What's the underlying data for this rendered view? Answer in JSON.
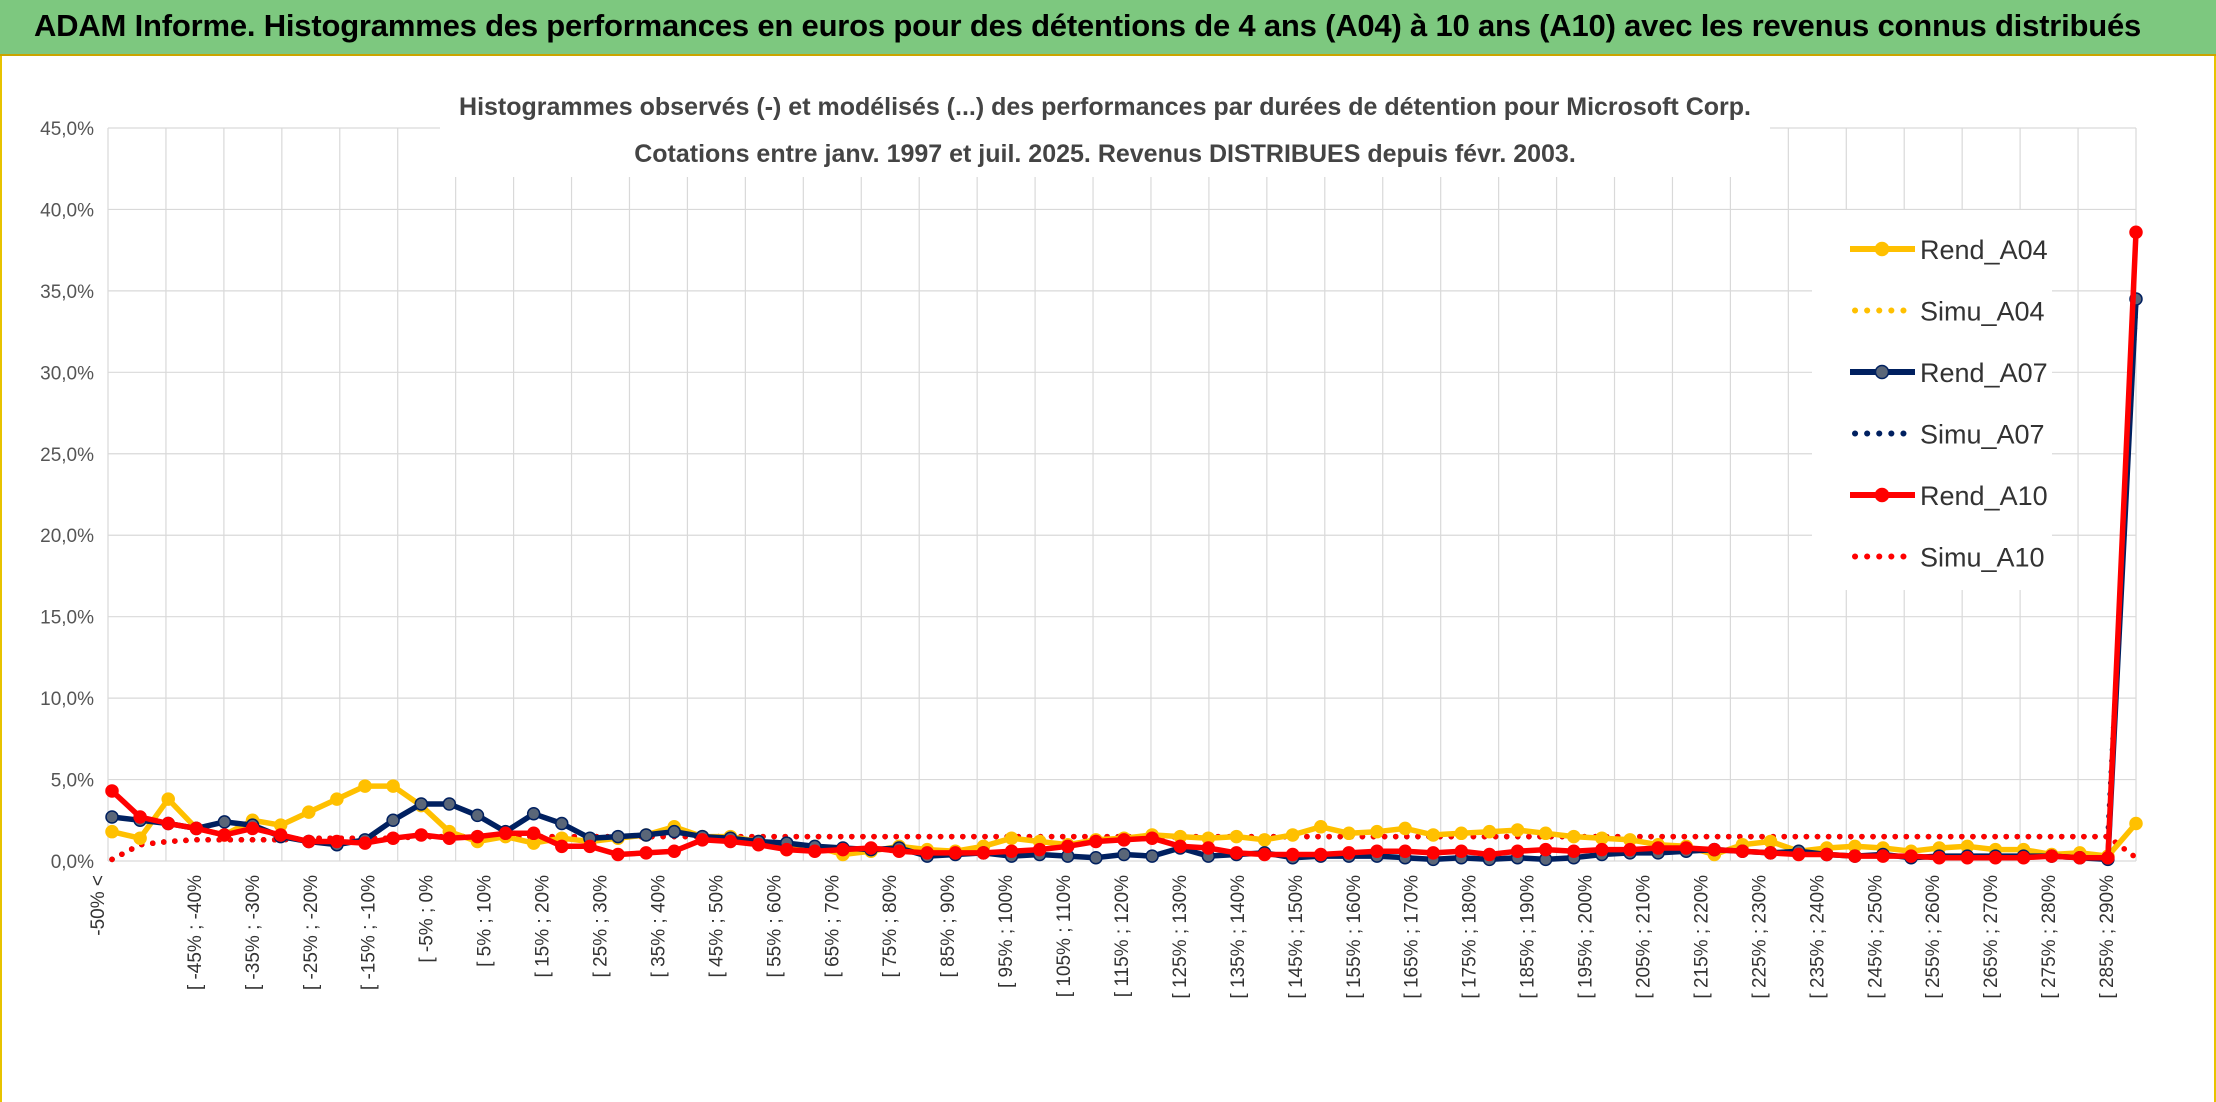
{
  "banner": {
    "title": "ADAM Informe. Histogrammes des performances en euros pour des détentions de 4 ans (A04) à 10 ans (A10) avec les revenus connus distribués"
  },
  "chart_data": {
    "type": "line",
    "title": "Histogrammes observés (-) et modélisés (...) des performances par durées de détention pour Microsoft Corp.",
    "subtitle": "Cotations entre janv. 1997 et juil. 2025. Revenus DISTRIBUES depuis févr. 2003.",
    "ylim": [
      0,
      45
    ],
    "yticks": [
      "0,0%",
      "5,0%",
      "10,0%",
      "15,0%",
      "20,0%",
      "25,0%",
      "30,0%",
      "35,0%",
      "40,0%",
      "45,0%"
    ],
    "grid": true,
    "legend_position": "right",
    "colors": {
      "A04": "#ffc000",
      "A07": "#002060",
      "A10": "#ff0000",
      "marker_A07": "#5a6678"
    },
    "category_labels": [
      "-50% <",
      "[ -45% ; -40%",
      "[ -35% ; -30%",
      "[ -25% ; -20%",
      "[ -15% ; -10%",
      "[ -5% ; 0%",
      "[ 5% ; 10%",
      "[ 15% ; 20%",
      "[ 25% ; 30%",
      "[ 35% ; 40%",
      "[ 45% ; 50%",
      "[ 55% ; 60%",
      "[ 65% ; 70%",
      "[ 75% ; 80%",
      "[ 85% ; 90%",
      "[ 95% ; 100%",
      "[ 105% ; 110%",
      "[ 115% ; 120%",
      "[ 125% ; 130%",
      "[ 135% ; 140%",
      "[ 145% ; 150%",
      "[ 155% ; 160%",
      "[ 165% ; 170%",
      "[ 175% ; 180%",
      "[ 185% ; 190%",
      "[ 195% ; 200%",
      "[ 205% ; 210%",
      "[ 215% ; 220%",
      "[ 225% ; 230%",
      "[ 235% ; 240%",
      "[ 245% ; 250%",
      "[ 255% ; 260%",
      "[ 265% ; 270%",
      "[ 275% ; 280%",
      "[ 285% ; 290%"
    ],
    "series": [
      {
        "name": "Rend_A04",
        "style": "solid",
        "color": "#ffc000",
        "marker_color": "#ffc000",
        "values": [
          1.8,
          1.4,
          3.8,
          2.0,
          1.6,
          2.5,
          2.2,
          3.0,
          3.8,
          4.6,
          4.6,
          3.4,
          1.8,
          1.2,
          1.5,
          1.1,
          1.4,
          1.2,
          1.4,
          1.6,
          2.1,
          1.5,
          1.5,
          1.2,
          0.7,
          0.9,
          0.4,
          0.6,
          0.9,
          0.7,
          0.6,
          0.9,
          1.4,
          1.2,
          1.0,
          1.3,
          1.4,
          1.6,
          1.5,
          1.4,
          1.5,
          1.3,
          1.6,
          2.1,
          1.7,
          1.8,
          2.0,
          1.6,
          1.7,
          1.8,
          1.9,
          1.7,
          1.5,
          1.4,
          1.3,
          1.0,
          0.9,
          0.4,
          1.0,
          1.2,
          0.6,
          0.8,
          0.9,
          0.8,
          0.6,
          0.8,
          0.9,
          0.7,
          0.7,
          0.4,
          0.5,
          0.3,
          2.3
        ]
      },
      {
        "name": "Simu_A04",
        "style": "dotted",
        "color": "#ffc000",
        "values": [
          0.1,
          1.0,
          1.2,
          1.3,
          1.3,
          1.3,
          1.3,
          1.4,
          1.4,
          1.4,
          1.4,
          1.5,
          1.5,
          1.5,
          1.5,
          1.5,
          1.5,
          1.5,
          1.5,
          1.5,
          1.5,
          1.5,
          1.5,
          1.5,
          1.5,
          1.5,
          1.5,
          1.5,
          1.5,
          1.5,
          1.5,
          1.5,
          1.5,
          1.5,
          1.5,
          1.5,
          1.5,
          1.5,
          1.5,
          1.5,
          1.5,
          1.5,
          1.5,
          1.5,
          1.5,
          1.5,
          1.5,
          1.5,
          1.5,
          1.5,
          1.5,
          1.5,
          1.5,
          1.5,
          1.5,
          1.5,
          1.5,
          1.5,
          1.5,
          1.5,
          1.5,
          1.5,
          1.5,
          1.5,
          1.5,
          1.5,
          1.5,
          1.5,
          1.5,
          1.5,
          1.5,
          1.5,
          0.2
        ]
      },
      {
        "name": "Rend_A07",
        "style": "solid",
        "color": "#002060",
        "marker_color": "#5a6678",
        "values": [
          2.7,
          2.5,
          2.3,
          2.0,
          2.4,
          2.2,
          1.5,
          1.2,
          1.0,
          1.3,
          2.5,
          3.5,
          3.5,
          2.8,
          1.8,
          2.9,
          2.3,
          1.4,
          1.5,
          1.6,
          1.8,
          1.5,
          1.4,
          1.2,
          1.1,
          0.9,
          0.8,
          0.7,
          0.8,
          0.3,
          0.4,
          0.5,
          0.3,
          0.4,
          0.3,
          0.2,
          0.4,
          0.3,
          0.8,
          0.3,
          0.4,
          0.5,
          0.2,
          0.3,
          0.3,
          0.3,
          0.2,
          0.1,
          0.2,
          0.1,
          0.2,
          0.1,
          0.2,
          0.4,
          0.5,
          0.5,
          0.6,
          0.7,
          0.6,
          0.5,
          0.6,
          0.4,
          0.3,
          0.4,
          0.2,
          0.3,
          0.3,
          0.3,
          0.3,
          0.3,
          0.2,
          0.1,
          34.5
        ]
      },
      {
        "name": "Simu_A07",
        "style": "dotted",
        "color": "#002060",
        "values": [
          0.1,
          1.0,
          1.2,
          1.3,
          1.3,
          1.3,
          1.3,
          1.4,
          1.4,
          1.4,
          1.4,
          1.5,
          1.5,
          1.5,
          1.5,
          1.5,
          1.5,
          1.5,
          1.5,
          1.5,
          1.5,
          1.5,
          1.5,
          1.5,
          1.5,
          1.5,
          1.5,
          1.5,
          1.5,
          1.5,
          1.5,
          1.5,
          1.5,
          1.5,
          1.5,
          1.5,
          1.5,
          1.5,
          1.5,
          1.5,
          1.5,
          1.5,
          1.5,
          1.5,
          1.5,
          1.5,
          1.5,
          1.5,
          1.5,
          1.5,
          1.5,
          1.5,
          1.5,
          1.5,
          1.5,
          1.5,
          1.5,
          1.5,
          1.5,
          1.5,
          1.5,
          1.5,
          1.5,
          1.5,
          1.5,
          1.5,
          1.5,
          1.5,
          1.5,
          1.5,
          1.5,
          1.5,
          34.5
        ]
      },
      {
        "name": "Rend_A10",
        "style": "solid",
        "color": "#ff0000",
        "marker_color": "#ff0000",
        "values": [
          4.3,
          2.7,
          2.3,
          2.0,
          1.6,
          2.0,
          1.6,
          1.2,
          1.2,
          1.1,
          1.4,
          1.6,
          1.4,
          1.5,
          1.7,
          1.7,
          0.9,
          0.9,
          0.4,
          0.5,
          0.6,
          1.3,
          1.2,
          1.0,
          0.7,
          0.6,
          0.7,
          0.8,
          0.6,
          0.5,
          0.5,
          0.5,
          0.6,
          0.7,
          0.9,
          1.2,
          1.3,
          1.4,
          0.9,
          0.8,
          0.5,
          0.4,
          0.4,
          0.4,
          0.5,
          0.6,
          0.6,
          0.5,
          0.6,
          0.4,
          0.6,
          0.7,
          0.6,
          0.7,
          0.7,
          0.8,
          0.8,
          0.7,
          0.6,
          0.5,
          0.4,
          0.4,
          0.3,
          0.3,
          0.3,
          0.2,
          0.2,
          0.2,
          0.2,
          0.3,
          0.2,
          0.2,
          38.6
        ]
      },
      {
        "name": "Simu_A10",
        "style": "dotted",
        "color": "#ff0000",
        "values": [
          0.1,
          1.0,
          1.2,
          1.3,
          1.3,
          1.3,
          1.3,
          1.4,
          1.4,
          1.4,
          1.4,
          1.5,
          1.5,
          1.5,
          1.5,
          1.5,
          1.5,
          1.5,
          1.5,
          1.5,
          1.5,
          1.5,
          1.5,
          1.5,
          1.5,
          1.5,
          1.5,
          1.5,
          1.5,
          1.5,
          1.5,
          1.5,
          1.5,
          1.5,
          1.5,
          1.5,
          1.5,
          1.5,
          1.5,
          1.5,
          1.5,
          1.5,
          1.5,
          1.5,
          1.5,
          1.5,
          1.5,
          1.5,
          1.5,
          1.5,
          1.5,
          1.5,
          1.5,
          1.5,
          1.5,
          1.5,
          1.5,
          1.5,
          1.5,
          1.5,
          1.5,
          1.5,
          1.5,
          1.5,
          1.5,
          1.5,
          1.5,
          1.5,
          1.5,
          1.5,
          1.5,
          1.5,
          0.2
        ]
      }
    ],
    "legend": [
      "Rend_A04",
      "Simu_A04",
      "Rend_A07",
      "Simu_A07",
      "Rend_A10",
      "Simu_A10"
    ]
  }
}
